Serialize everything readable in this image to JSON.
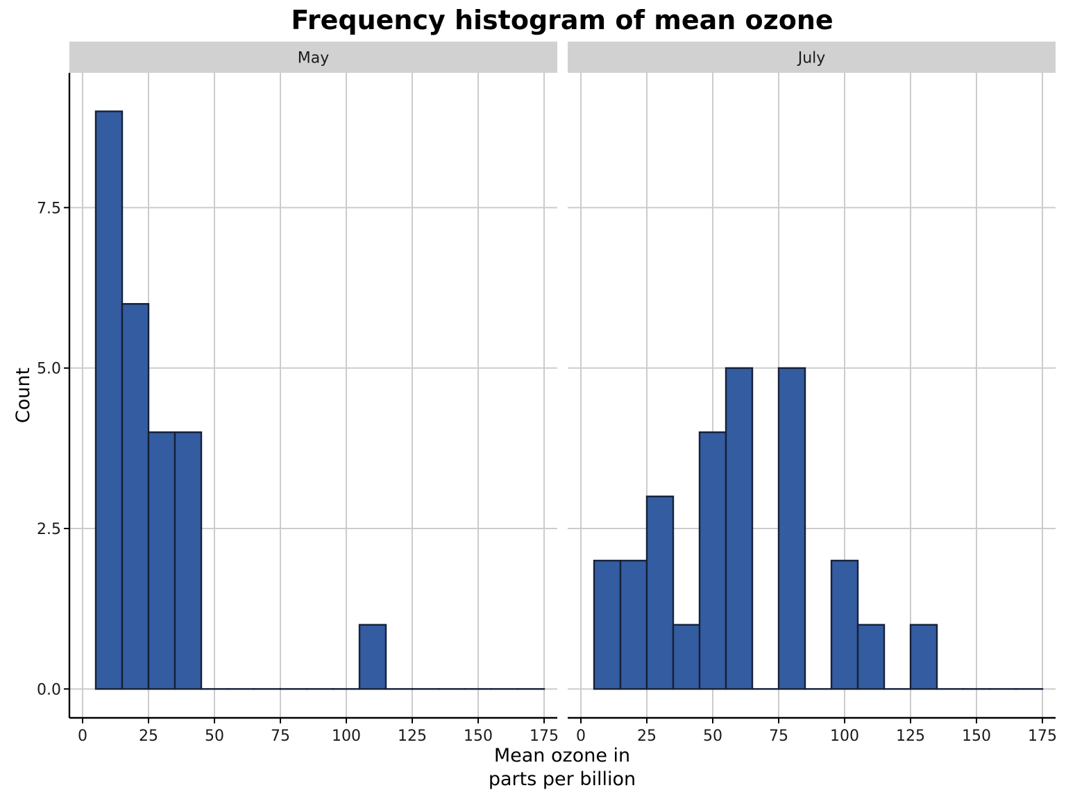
{
  "chart_data": {
    "type": "bar",
    "title": "Frequency histogram of mean ozone",
    "xlabel_lines": [
      "Mean ozone in",
      "parts per billion"
    ],
    "ylabel": "Count",
    "bin_width": 10,
    "xlim": [
      -5,
      180
    ],
    "ylim": [
      -0.45,
      9.6
    ],
    "x_ticks": [
      0,
      25,
      50,
      75,
      100,
      125,
      150,
      175
    ],
    "x_tick_labels": [
      "0",
      "25",
      "50",
      "75",
      "100",
      "125",
      "150",
      "175"
    ],
    "y_ticks": [
      0,
      2.5,
      5,
      7.5
    ],
    "y_tick_labels": [
      "0.0",
      "2.5",
      "5.0",
      "7.5"
    ],
    "grid": true,
    "colors": {
      "bar_fill": "#345ca0",
      "bar_outline": "#15213a",
      "grid": "#cccccc",
      "strip": "#d1d1d1"
    },
    "panels": [
      {
        "name": "May",
        "bin_centers": [
          10,
          20,
          30,
          40,
          50,
          60,
          70,
          80,
          90,
          100,
          110,
          120,
          130,
          140,
          150,
          160,
          170
        ],
        "counts": [
          9,
          6,
          4,
          4,
          0,
          0,
          0,
          0,
          0,
          0,
          1,
          0,
          0,
          0,
          0,
          0,
          0
        ]
      },
      {
        "name": "July",
        "bin_centers": [
          10,
          20,
          30,
          40,
          50,
          60,
          70,
          80,
          90,
          100,
          110,
          120,
          130,
          140,
          150,
          160,
          170
        ],
        "counts": [
          2,
          2,
          3,
          1,
          4,
          5,
          0,
          5,
          0,
          2,
          1,
          0,
          1,
          0,
          0,
          0,
          0
        ]
      }
    ]
  }
}
